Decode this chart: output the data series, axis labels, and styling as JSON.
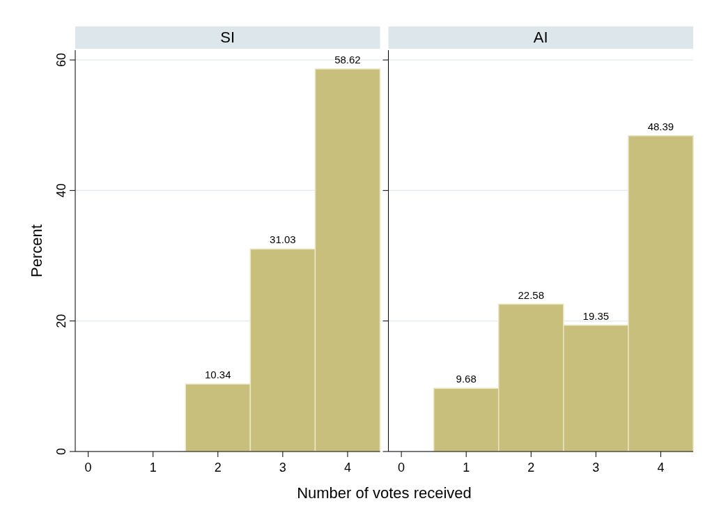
{
  "chart_data": [
    {
      "type": "histogram",
      "title": "SI",
      "ylabel": "Percent",
      "xlabel": "Number of votes received",
      "bins": [
        -0.5,
        0.5,
        1.5,
        2.5,
        3.5,
        4.5
      ],
      "values": [
        0,
        0,
        10.34,
        31.03,
        58.62
      ],
      "value_labels": [
        null,
        null,
        "10.34",
        "31.03",
        "58.62"
      ],
      "color": "#c8bf7c",
      "xlim": [
        -0.2,
        4.5
      ],
      "xticks": [
        0,
        1,
        2,
        3,
        4
      ],
      "ylim": [
        0,
        61.5
      ],
      "yticks": [
        0,
        20,
        40,
        60
      ],
      "grid": "y"
    },
    {
      "type": "histogram",
      "title": "AI",
      "bins": [
        -0.5,
        0.5,
        1.5,
        2.5,
        3.5,
        4.5
      ],
      "values": [
        0,
        9.68,
        22.58,
        19.35,
        48.39
      ],
      "value_labels": [
        null,
        "9.68",
        "22.58",
        "19.35",
        "48.39"
      ],
      "color": "#c8bf7c",
      "xlim": [
        -0.2,
        4.5
      ],
      "xticks": [
        0,
        1,
        2,
        3,
        4
      ],
      "ylim": [
        0,
        61.5
      ],
      "yticks": [
        0,
        20,
        40,
        60
      ],
      "grid": "y",
      "tick_labels": "x"
    }
  ]
}
